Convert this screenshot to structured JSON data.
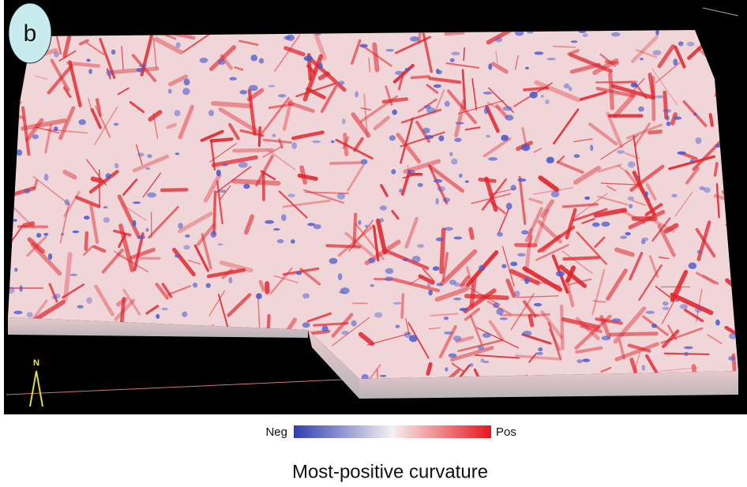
{
  "panel_label": "b",
  "north_label": "N",
  "colorbar": {
    "min_label": "Neg",
    "max_label": "Pos"
  },
  "caption": "Most-positive curvature"
}
